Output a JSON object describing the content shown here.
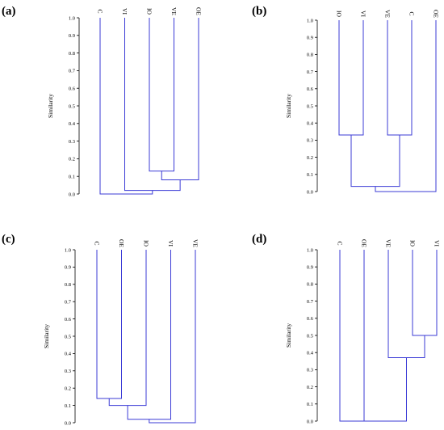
{
  "chart_data": [
    {
      "type": "dendrogram",
      "panel_label": "(a)",
      "ylabel": "Similarity",
      "ylim": [
        0,
        1
      ],
      "yticks": [
        "0.0",
        "0.1",
        "0.2",
        "0.3",
        "0.4",
        "0.5",
        "0.6",
        "0.7",
        "0.8",
        "0.9",
        "1.0"
      ],
      "leaves": [
        "C",
        "VI",
        "IO",
        "VE",
        "OE"
      ],
      "merges": [
        {
          "a": "IO",
          "b": "VE",
          "height": 0.13
        },
        {
          "a": "IO+VE",
          "b": "OE",
          "height": 0.08
        },
        {
          "a": "VI",
          "b": "IO+VE+OE",
          "height": 0.02
        },
        {
          "a": "C",
          "b": "VI+IO+VE+OE",
          "height": 0.0
        }
      ]
    },
    {
      "type": "dendrogram",
      "panel_label": "(b)",
      "ylabel": "Similarity",
      "ylim": [
        0,
        1
      ],
      "yticks": [
        "0.0",
        "0.1",
        "0.2",
        "0.3",
        "0.4",
        "0.5",
        "0.6",
        "0.7",
        "0.8",
        "0.9",
        "1.0"
      ],
      "leaves": [
        "IO",
        "VI",
        "VE",
        "C",
        "OE"
      ],
      "merges": [
        {
          "a": "IO",
          "b": "VI",
          "height": 0.33
        },
        {
          "a": "VE",
          "b": "C",
          "height": 0.33
        },
        {
          "a": "IO+VI",
          "b": "VE+C",
          "height": 0.03
        },
        {
          "a": "IO+VI+VE+C",
          "b": "OE",
          "height": 0.0
        }
      ]
    },
    {
      "type": "dendrogram",
      "panel_label": "(c)",
      "ylabel": "Similarity",
      "ylim": [
        0,
        1
      ],
      "yticks": [
        "0.0",
        "0.1",
        "0.2",
        "0.3",
        "0.4",
        "0.5",
        "0.6",
        "0.7",
        "0.8",
        "0.9",
        "1.0"
      ],
      "leaves": [
        "C",
        "OE",
        "IO",
        "VI",
        "VE"
      ],
      "merges": [
        {
          "a": "C",
          "b": "OE",
          "height": 0.14
        },
        {
          "a": "C+OE",
          "b": "IO",
          "height": 0.1
        },
        {
          "a": "C+OE+IO",
          "b": "VI",
          "height": 0.02
        },
        {
          "a": "C+OE+IO+VI",
          "b": "VE",
          "height": 0.0
        }
      ]
    },
    {
      "type": "dendrogram",
      "panel_label": "(d)",
      "ylabel": "Similarity",
      "ylim": [
        0,
        1
      ],
      "yticks": [
        "0.0",
        "0.1",
        "0.2",
        "0.3",
        "0.4",
        "0.5",
        "0.6",
        "0.7",
        "0.8",
        "0.9",
        "1.0"
      ],
      "leaves": [
        "C",
        "OE",
        "VE",
        "IO",
        "VI"
      ],
      "merges": [
        {
          "a": "IO",
          "b": "VI",
          "height": 0.5
        },
        {
          "a": "VE",
          "b": "IO+VI",
          "height": 0.37
        },
        {
          "a": "C",
          "b": "OE",
          "height": 0.0
        },
        {
          "a": "C+OE",
          "b": "VE+IO+VI",
          "height": 0.0
        }
      ]
    }
  ],
  "colors": {
    "line": "#3b3bd6",
    "axis": "#000000"
  }
}
